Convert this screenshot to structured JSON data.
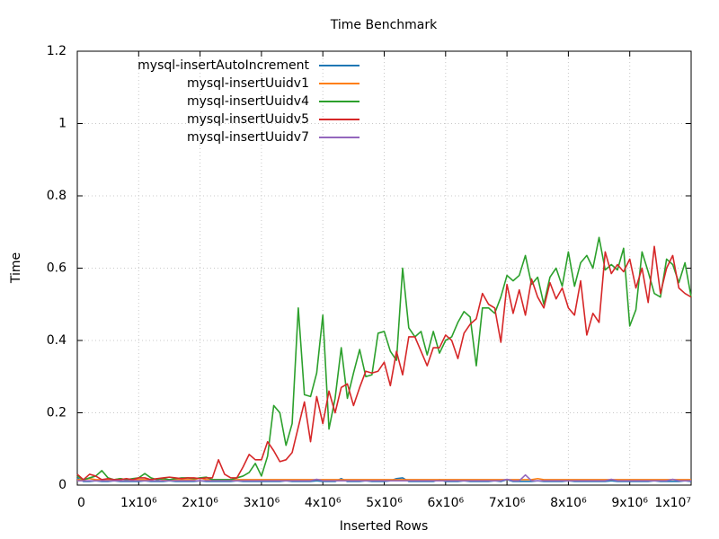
{
  "chart_data": {
    "type": "line",
    "title": "Time Benchmark",
    "x_label": "Inserted Rows",
    "y_label": "Time",
    "x": [
      0,
      100000,
      200000,
      300000,
      400000,
      500000,
      600000,
      700000,
      800000,
      900000,
      1000000,
      1100000,
      1200000,
      1300000,
      1400000,
      1500000,
      1600000,
      1700000,
      1800000,
      1900000,
      2000000,
      2100000,
      2200000,
      2300000,
      2400000,
      2500000,
      2600000,
      2700000,
      2800000,
      2900000,
      3000000,
      3100000,
      3200000,
      3300000,
      3400000,
      3500000,
      3600000,
      3700000,
      3800000,
      3900000,
      4000000,
      4100000,
      4200000,
      4300000,
      4400000,
      4500000,
      4600000,
      4700000,
      4800000,
      4900000,
      5000000,
      5100000,
      5200000,
      5300000,
      5400000,
      5500000,
      5600000,
      5700000,
      5800000,
      5900000,
      6000000,
      6100000,
      6200000,
      6300000,
      6400000,
      6500000,
      6600000,
      6700000,
      6800000,
      6900000,
      7000000,
      7100000,
      7200000,
      7300000,
      7400000,
      7500000,
      7600000,
      7700000,
      7800000,
      7900000,
      8000000,
      8100000,
      8200000,
      8300000,
      8400000,
      8500000,
      8600000,
      8700000,
      8800000,
      8900000,
      9000000,
      9100000,
      9200000,
      9300000,
      9400000,
      9500000,
      9600000,
      9700000,
      9800000,
      9900000,
      10000000
    ],
    "series": [
      {
        "name": "mysql-insertAutoIncrement",
        "color": "#1f77b4",
        "values": [
          0.02,
          0.01,
          0.01,
          0.012,
          0.01,
          0.01,
          0.012,
          0.01,
          0.01,
          0.01,
          0.01,
          0.012,
          0.01,
          0.01,
          0.01,
          0.012,
          0.01,
          0.01,
          0.01,
          0.01,
          0.012,
          0.01,
          0.01,
          0.01,
          0.01,
          0.01,
          0.012,
          0.01,
          0.01,
          0.01,
          0.01,
          0.01,
          0.01,
          0.01,
          0.012,
          0.01,
          0.01,
          0.01,
          0.01,
          0.012,
          0.01,
          0.01,
          0.01,
          0.018,
          0.01,
          0.01,
          0.01,
          0.012,
          0.01,
          0.01,
          0.01,
          0.012,
          0.018,
          0.02,
          0.01,
          0.01,
          0.01,
          0.01,
          0.01,
          0.015,
          0.01,
          0.01,
          0.01,
          0.012,
          0.01,
          0.01,
          0.01,
          0.01,
          0.012,
          0.01,
          0.015,
          0.01,
          0.01,
          0.01,
          0.01,
          0.012,
          0.01,
          0.01,
          0.01,
          0.01,
          0.012,
          0.01,
          0.01,
          0.01,
          0.01,
          0.01,
          0.01,
          0.012,
          0.01,
          0.01,
          0.01,
          0.01,
          0.01,
          0.01,
          0.012,
          0.01,
          0.01,
          0.01,
          0.01,
          0.012,
          0.01
        ]
      },
      {
        "name": "mysql-insertUuidv1",
        "color": "#ff7f0e",
        "values": [
          0.015,
          0.015,
          0.018,
          0.015,
          0.015,
          0.015,
          0.015,
          0.018,
          0.015,
          0.015,
          0.015,
          0.015,
          0.015,
          0.018,
          0.015,
          0.015,
          0.015,
          0.015,
          0.015,
          0.015,
          0.02,
          0.015,
          0.015,
          0.015,
          0.015,
          0.015,
          0.015,
          0.015,
          0.015,
          0.015,
          0.015,
          0.015,
          0.015,
          0.015,
          0.015,
          0.015,
          0.015,
          0.015,
          0.015,
          0.015,
          0.015,
          0.015,
          0.015,
          0.015,
          0.015,
          0.015,
          0.015,
          0.015,
          0.015,
          0.015,
          0.015,
          0.015,
          0.015,
          0.015,
          0.015,
          0.015,
          0.015,
          0.015,
          0.015,
          0.015,
          0.015,
          0.015,
          0.015,
          0.015,
          0.015,
          0.015,
          0.015,
          0.015,
          0.015,
          0.015,
          0.015,
          0.015,
          0.015,
          0.015,
          0.015,
          0.018,
          0.015,
          0.015,
          0.015,
          0.015,
          0.015,
          0.015,
          0.015,
          0.015,
          0.015,
          0.015,
          0.015,
          0.015,
          0.015,
          0.015,
          0.015,
          0.015,
          0.015,
          0.015,
          0.015,
          0.015,
          0.015,
          0.015,
          0.015,
          0.015,
          0.015
        ]
      },
      {
        "name": "mysql-insertUuidv4",
        "color": "#2ca02c",
        "values": [
          0.025,
          0.015,
          0.02,
          0.025,
          0.04,
          0.02,
          0.015,
          0.018,
          0.015,
          0.018,
          0.02,
          0.032,
          0.02,
          0.015,
          0.018,
          0.015,
          0.018,
          0.02,
          0.02,
          0.018,
          0.02,
          0.022,
          0.015,
          0.015,
          0.015,
          0.015,
          0.02,
          0.025,
          0.035,
          0.06,
          0.025,
          0.08,
          0.22,
          0.2,
          0.11,
          0.17,
          0.49,
          0.25,
          0.245,
          0.31,
          0.47,
          0.155,
          0.24,
          0.38,
          0.24,
          0.31,
          0.375,
          0.3,
          0.305,
          0.42,
          0.425,
          0.37,
          0.345,
          0.6,
          0.435,
          0.41,
          0.425,
          0.36,
          0.425,
          0.365,
          0.4,
          0.41,
          0.45,
          0.48,
          0.465,
          0.33,
          0.49,
          0.49,
          0.475,
          0.52,
          0.58,
          0.565,
          0.58,
          0.635,
          0.555,
          0.575,
          0.5,
          0.575,
          0.6,
          0.55,
          0.645,
          0.55,
          0.615,
          0.635,
          0.6,
          0.685,
          0.595,
          0.61,
          0.595,
          0.655,
          0.44,
          0.485,
          0.645,
          0.59,
          0.53,
          0.52,
          0.625,
          0.61,
          0.56,
          0.615,
          0.52
        ]
      },
      {
        "name": "mysql-insertUuidv5",
        "color": "#d62728",
        "values": [
          0.03,
          0.015,
          0.03,
          0.025,
          0.015,
          0.018,
          0.015,
          0.015,
          0.018,
          0.015,
          0.02,
          0.02,
          0.015,
          0.018,
          0.02,
          0.022,
          0.02,
          0.018,
          0.02,
          0.02,
          0.018,
          0.02,
          0.02,
          0.07,
          0.03,
          0.02,
          0.02,
          0.05,
          0.085,
          0.07,
          0.07,
          0.12,
          0.095,
          0.065,
          0.07,
          0.09,
          0.16,
          0.23,
          0.12,
          0.245,
          0.17,
          0.26,
          0.2,
          0.27,
          0.28,
          0.22,
          0.27,
          0.315,
          0.31,
          0.315,
          0.34,
          0.275,
          0.37,
          0.305,
          0.41,
          0.41,
          0.37,
          0.33,
          0.38,
          0.38,
          0.415,
          0.4,
          0.35,
          0.42,
          0.445,
          0.46,
          0.53,
          0.5,
          0.49,
          0.395,
          0.555,
          0.475,
          0.54,
          0.47,
          0.57,
          0.52,
          0.49,
          0.56,
          0.515,
          0.545,
          0.49,
          0.47,
          0.565,
          0.415,
          0.475,
          0.45,
          0.645,
          0.585,
          0.61,
          0.59,
          0.625,
          0.545,
          0.6,
          0.505,
          0.66,
          0.53,
          0.6,
          0.635,
          0.545,
          0.53,
          0.52
        ]
      },
      {
        "name": "mysql-insertUuidv7",
        "color": "#9467bd",
        "values": [
          0.012,
          0.012,
          0.012,
          0.012,
          0.012,
          0.012,
          0.012,
          0.012,
          0.012,
          0.012,
          0.012,
          0.012,
          0.012,
          0.012,
          0.012,
          0.012,
          0.012,
          0.012,
          0.012,
          0.012,
          0.012,
          0.012,
          0.012,
          0.012,
          0.012,
          0.012,
          0.012,
          0.012,
          0.012,
          0.012,
          0.012,
          0.012,
          0.012,
          0.012,
          0.012,
          0.012,
          0.012,
          0.012,
          0.012,
          0.016,
          0.012,
          0.012,
          0.012,
          0.012,
          0.012,
          0.012,
          0.012,
          0.012,
          0.012,
          0.012,
          0.012,
          0.012,
          0.012,
          0.012,
          0.012,
          0.012,
          0.012,
          0.012,
          0.012,
          0.012,
          0.012,
          0.012,
          0.012,
          0.012,
          0.012,
          0.012,
          0.012,
          0.012,
          0.012,
          0.012,
          0.016,
          0.012,
          0.012,
          0.028,
          0.012,
          0.012,
          0.012,
          0.012,
          0.012,
          0.012,
          0.012,
          0.012,
          0.012,
          0.012,
          0.012,
          0.012,
          0.012,
          0.016,
          0.012,
          0.012,
          0.012,
          0.012,
          0.012,
          0.012,
          0.012,
          0.012,
          0.012,
          0.016,
          0.012,
          0.012,
          0.012
        ]
      }
    ],
    "xlim": [
      0,
      10000000
    ],
    "xticks": [
      0,
      {
        "value": 1000000,
        "label": "1x10⁶"
      },
      {
        "value": 2000000,
        "label": "2x10⁶"
      },
      {
        "value": 3000000,
        "label": "3x10⁶"
      },
      {
        "value": 4000000,
        "label": "4x10⁶"
      },
      {
        "value": 5000000,
        "label": "5x10⁶"
      },
      {
        "value": 6000000,
        "label": "6x10⁶"
      },
      {
        "value": 7000000,
        "label": "7x10⁶"
      },
      {
        "value": 8000000,
        "label": "8x10⁶"
      },
      {
        "value": 9000000,
        "label": "9x10⁶"
      },
      {
        "value": 10000000,
        "label": "1x10⁷"
      }
    ],
    "ylim": [
      0,
      1.2
    ],
    "yticks": [
      0,
      0.2,
      0.4,
      0.6,
      0.8,
      1,
      1.2
    ],
    "grid": true,
    "legend": "top left"
  }
}
